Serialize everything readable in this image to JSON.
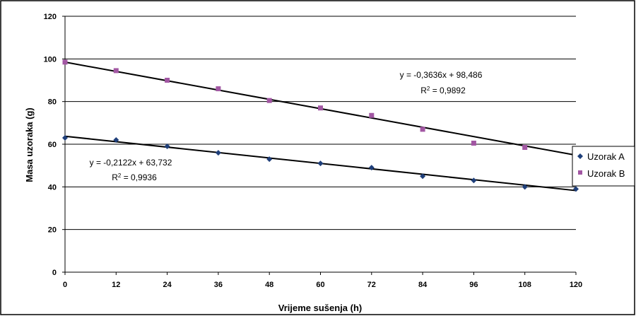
{
  "chart_data": {
    "type": "scatter",
    "xlabel": "Vrijeme sušenja (h)",
    "ylabel": "Masa uzoraka (g)",
    "xlim": [
      0,
      120
    ],
    "ylim": [
      0,
      120
    ],
    "x_ticks": [
      0,
      12,
      24,
      36,
      48,
      60,
      72,
      84,
      96,
      108,
      120
    ],
    "y_ticks": [
      0,
      20,
      40,
      60,
      80,
      100,
      120
    ],
    "x_tick_labels": [
      "0",
      "12",
      "24",
      "36",
      "48",
      "60",
      "72",
      "84",
      "96",
      "108",
      "120"
    ],
    "y_tick_labels": [
      "0",
      "20",
      "40",
      "60",
      "80",
      "100",
      "120"
    ],
    "grid": "horizontal",
    "legend_position": "right",
    "series": [
      {
        "name": "Uzorak A",
        "marker": "diamond",
        "color": "#1f3f7a",
        "x": [
          0,
          12,
          24,
          36,
          48,
          60,
          72,
          84,
          96,
          108,
          120
        ],
        "y": [
          63,
          62,
          59,
          56,
          53,
          51,
          49,
          45,
          43,
          40,
          39
        ],
        "trendline": {
          "slope": -0.2122,
          "intercept": 63.732,
          "equation": "y = -0,2122x + 63,732",
          "r2_label": "R",
          "r2_sup": "2",
          "r2_value": " = 0,9936"
        }
      },
      {
        "name": "Uzorak B",
        "marker": "square",
        "color": "#a257a3",
        "x": [
          0,
          12,
          24,
          36,
          48,
          60,
          72,
          84,
          96,
          108
        ],
        "y": [
          98.5,
          94.5,
          90,
          86,
          80.5,
          77,
          73.5,
          67,
          60.5,
          58.5
        ],
        "trendline": {
          "slope": -0.3636,
          "intercept": 98.486,
          "equation": "y = -0,3636x + 98,486",
          "r2_label": "R",
          "r2_sup": "2",
          "r2_value": " = 0,9892"
        }
      }
    ],
    "colors": {
      "trendline": "#000000",
      "gridline": "#000000",
      "frame": "#000000"
    }
  }
}
